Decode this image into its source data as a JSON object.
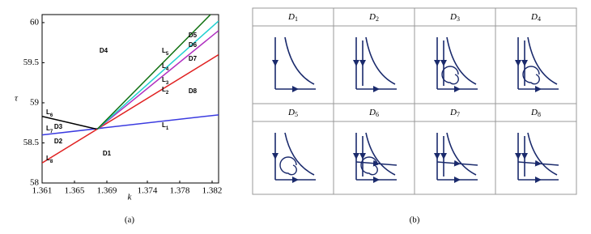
{
  "chart_data": {
    "type": "line",
    "x_label": "k",
    "y_label": "τ",
    "xlim": [
      1.361,
      1.3828
    ],
    "ylim": [
      58,
      60.1
    ],
    "xticks": [
      1.361,
      1.365,
      1.369,
      1.374,
      1.378,
      1.382
    ],
    "yticks": [
      58,
      58.5,
      59,
      59.5,
      60
    ],
    "series": [
      {
        "color": "#3a3ae0",
        "x": [
          1.361,
          1.3828
        ],
        "values": [
          58.6,
          58.85
        ]
      },
      {
        "color": "#000000",
        "x": [
          1.361,
          1.3678
        ],
        "values": [
          58.83,
          58.67
        ]
      },
      {
        "color": "#e02020",
        "x": [
          1.361,
          1.3828
        ],
        "values": [
          58.25,
          59.6
        ]
      },
      {
        "color": "#b030c0",
        "x": [
          1.3678,
          1.3828
        ],
        "values": [
          58.67,
          59.9
        ]
      },
      {
        "color": "#20d0d0",
        "x": [
          1.3678,
          1.3828
        ],
        "values": [
          58.67,
          60.02
        ]
      },
      {
        "color": "#107010",
        "x": [
          1.3678,
          1.3818
        ],
        "values": [
          58.67,
          60.1
        ]
      }
    ],
    "region_labels": [
      "D1",
      "D2",
      "D3",
      "D4",
      "D5",
      "D6",
      "D7",
      "D8"
    ],
    "line_labels": [
      {
        "text": "L",
        "sub": "1"
      },
      {
        "text": "L",
        "sub": "2"
      },
      {
        "text": "L",
        "sub": "3"
      },
      {
        "text": "L",
        "sub": "4"
      },
      {
        "text": "L",
        "sub": "5"
      },
      {
        "text": "L",
        "sub": "6"
      },
      {
        "text": "L",
        "sub": "7"
      },
      {
        "text": "L",
        "sub": "8"
      }
    ],
    "panel_label": "(a)"
  },
  "table": {
    "headers": [
      {
        "text": "D",
        "sub": "1"
      },
      {
        "text": "D",
        "sub": "2"
      },
      {
        "text": "D",
        "sub": "3"
      },
      {
        "text": "D",
        "sub": "4"
      },
      {
        "text": "D",
        "sub": "5"
      },
      {
        "text": "D",
        "sub": "6"
      },
      {
        "text": "D",
        "sub": "7"
      },
      {
        "text": "D",
        "sub": "8"
      }
    ],
    "panel_label": "(b)"
  }
}
